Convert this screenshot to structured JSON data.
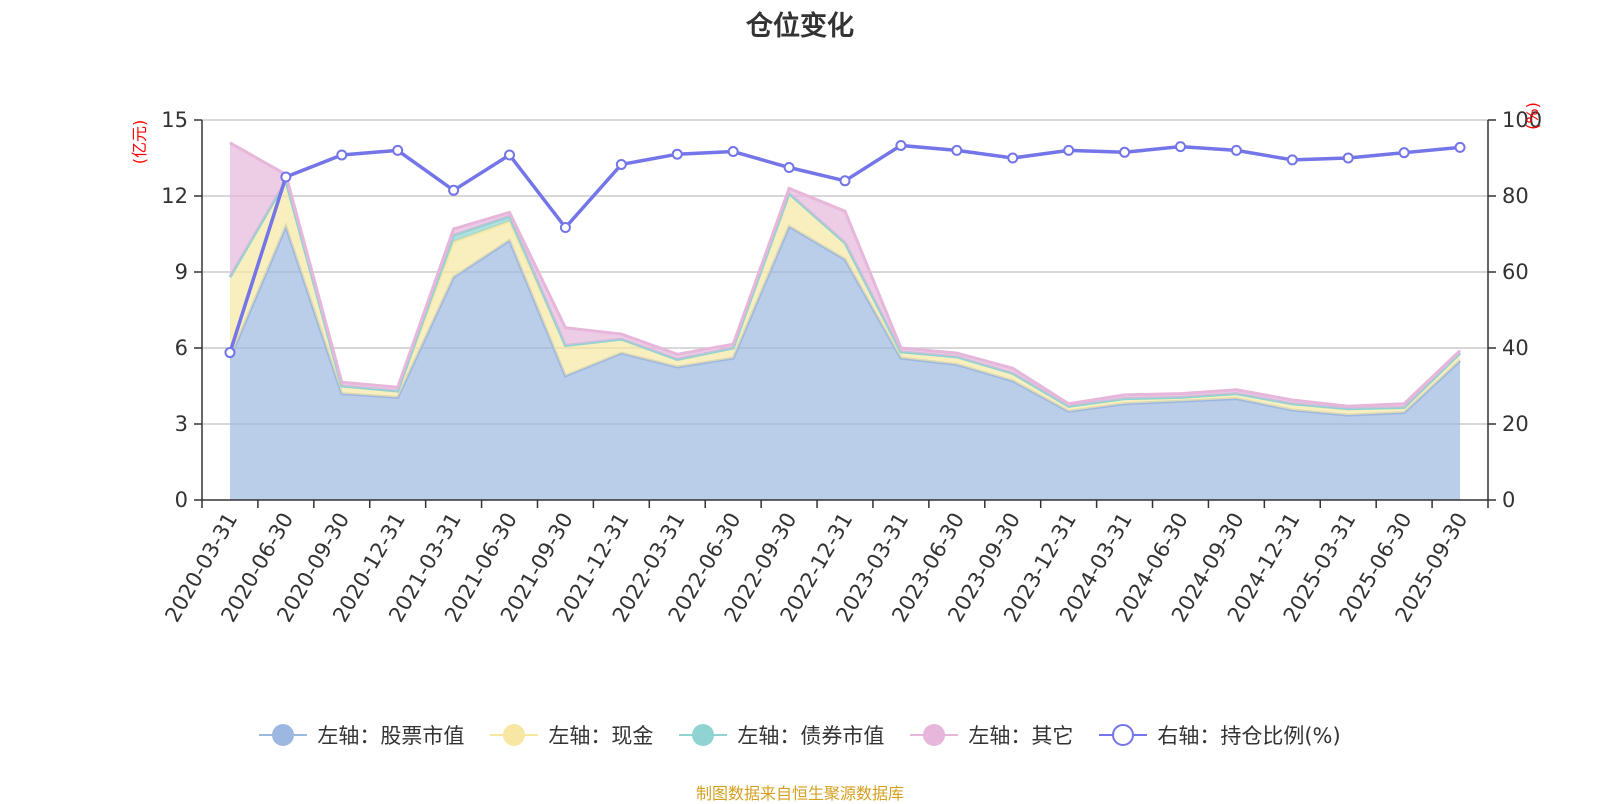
{
  "colors": {
    "stock": "#9db8e0",
    "cash": "#f7e7a3",
    "bond": "#8fd3d3",
    "other": "#e6b6db",
    "ratio": "#7375e8",
    "axis_unit": "#ff0000",
    "source": "#d4a020"
  },
  "legend": [
    {
      "key": "stock",
      "label": "左轴：股票市值",
      "icon": "filled-circle"
    },
    {
      "key": "cash",
      "label": "左轴：现金",
      "icon": "filled-circle"
    },
    {
      "key": "bond",
      "label": "左轴：债券市值",
      "icon": "filled-circle"
    },
    {
      "key": "other",
      "label": "左轴：其它",
      "icon": "filled-circle"
    },
    {
      "key": "ratio",
      "label": "右轴：持仓比例(%)",
      "icon": "hollow-circle"
    }
  ],
  "source_note": "制图数据来自恒生聚源数据库",
  "chart_data": {
    "type": "area",
    "title": "仓位变化",
    "left_axis": {
      "unit": "(亿元)",
      "min": 0,
      "max": 15,
      "ticks": [
        0,
        3,
        6,
        9,
        12,
        15
      ]
    },
    "right_axis": {
      "unit": "(%)",
      "min": 0,
      "max": 100,
      "ticks": [
        0,
        20,
        40,
        60,
        80,
        100
      ]
    },
    "categories": [
      "2020-03-31",
      "2020-06-30",
      "2020-09-30",
      "2020-12-31",
      "2021-03-31",
      "2021-06-30",
      "2021-09-30",
      "2021-12-31",
      "2022-03-31",
      "2022-06-30",
      "2022-09-30",
      "2022-12-31",
      "2023-03-31",
      "2023-06-30",
      "2023-09-30",
      "2023-12-31",
      "2024-03-31",
      "2024-06-30",
      "2024-09-30",
      "2024-12-31",
      "2025-03-31",
      "2025-06-30",
      "2025-09-30"
    ],
    "stacked_series": [
      {
        "key": "stock",
        "name": "左轴：股票市值",
        "axis": "left",
        "values": [
          5.6,
          10.8,
          4.2,
          4.05,
          8.8,
          10.25,
          4.9,
          5.8,
          5.25,
          5.6,
          10.8,
          9.5,
          5.6,
          5.35,
          4.7,
          3.5,
          3.8,
          3.9,
          4.0,
          3.55,
          3.35,
          3.45,
          5.5
        ]
      },
      {
        "key": "cash",
        "name": "左轴：现金",
        "axis": "left",
        "values": [
          3.2,
          1.8,
          0.3,
          0.25,
          1.4,
          0.75,
          1.2,
          0.55,
          0.3,
          0.4,
          1.3,
          0.65,
          0.25,
          0.3,
          0.3,
          0.2,
          0.2,
          0.15,
          0.2,
          0.25,
          0.25,
          0.2,
          0.3
        ]
      },
      {
        "key": "bond",
        "name": "左轴：债券市值",
        "axis": "left",
        "values": [
          0,
          0,
          0,
          0,
          0.25,
          0.2,
          0,
          0,
          0,
          0,
          0,
          0,
          0,
          0,
          0,
          0,
          0,
          0,
          0,
          0,
          0,
          0,
          0
        ]
      },
      {
        "key": "other",
        "name": "左轴：其它",
        "axis": "left",
        "values": [
          5.3,
          0.25,
          0.15,
          0.15,
          0.25,
          0.15,
          0.7,
          0.2,
          0.2,
          0.15,
          0.2,
          1.25,
          0.15,
          0.15,
          0.2,
          0.1,
          0.15,
          0.15,
          0.15,
          0.15,
          0.1,
          0.15,
          0.1
        ]
      }
    ],
    "line_series": {
      "key": "ratio",
      "name": "右轴：持仓比例(%)",
      "axis": "right",
      "values": [
        38.8,
        85,
        90.8,
        92,
        81.5,
        90.8,
        71.7,
        88.3,
        91,
        91.7,
        87.5,
        84,
        93.3,
        92,
        90,
        92,
        91.5,
        93,
        92,
        89.5,
        90,
        91.4,
        92.8
      ]
    }
  }
}
